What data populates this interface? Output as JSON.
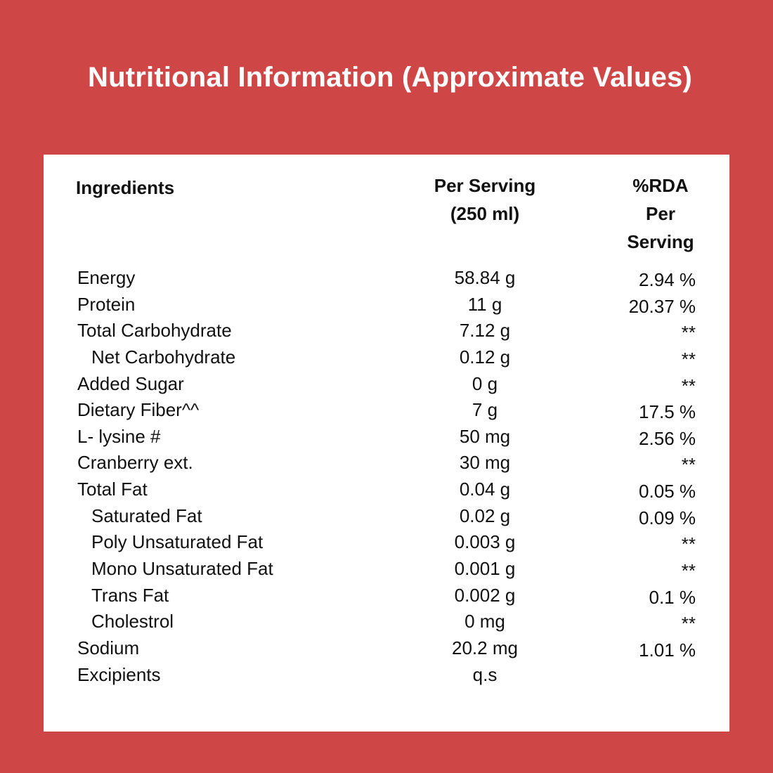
{
  "title": "Nutritional Information (Approximate Values)",
  "table": {
    "headers": {
      "ingredients": "Ingredients",
      "serving": [
        "Per Serving",
        "(250 ml)"
      ],
      "rda": [
        "%RDA",
        "Per",
        "Serving"
      ]
    },
    "rows": [
      {
        "name": "Energy",
        "serving": "58.84 g",
        "rda": "2.94 %",
        "indent": false
      },
      {
        "name": "Protein",
        "serving": "11 g",
        "rda": "20.37 %",
        "indent": false
      },
      {
        "name": "Total Carbohydrate",
        "serving": "7.12 g",
        "rda": "**",
        "indent": false
      },
      {
        "name": "Net Carbohydrate",
        "serving": "0.12 g",
        "rda": "**",
        "indent": true
      },
      {
        "name": "Added Sugar",
        "serving": "0 g",
        "rda": "**",
        "indent": false
      },
      {
        "name": "Dietary Fiber^^",
        "serving": "7 g",
        "rda": "17.5 %",
        "indent": false
      },
      {
        "name": "L- lysine #",
        "serving": "50 mg",
        "rda": "2.56 %",
        "indent": false
      },
      {
        "name": "Cranberry ext.",
        "serving": "30 mg",
        "rda": "**",
        "indent": false
      },
      {
        "name": "Total Fat",
        "serving": "0.04 g",
        "rda": "0.05 %",
        "indent": false
      },
      {
        "name": "Saturated Fat",
        "serving": "0.02 g",
        "rda": "0.09 %",
        "indent": true
      },
      {
        "name": "Poly Unsaturated Fat",
        "serving": "0.003 g",
        "rda": "**",
        "indent": true
      },
      {
        "name": "Mono Unsaturated Fat",
        "serving": "0.001 g",
        "rda": "**",
        "indent": true
      },
      {
        "name": "Trans Fat",
        "serving": "0.002 g",
        "rda": "0.1 %",
        "indent": true
      },
      {
        "name": "Cholestrol",
        "serving": "0 mg",
        "rda": "**",
        "indent": true
      },
      {
        "name": "Sodium",
        "serving": "20.2 mg",
        "rda": "1.01 %",
        "indent": false
      },
      {
        "name": "Excipients",
        "serving": "q.s",
        "rda": "",
        "indent": false
      }
    ]
  },
  "colors": {
    "background": "#cf4646",
    "card": "#ffffff",
    "text": "#111111",
    "title": "#ffffff"
  }
}
